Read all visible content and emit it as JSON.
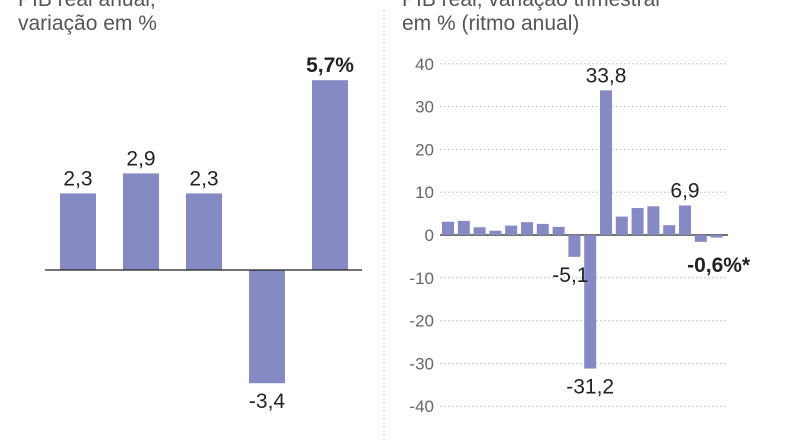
{
  "left_title": [
    "PIB real anual,",
    "variação em %"
  ],
  "right_title": [
    "PIB real, variação trimestral",
    "em % (ritmo anual)"
  ],
  "colors": {
    "bar": "#8589c4",
    "axis": "#222222",
    "grid": "#bbbbbb",
    "divider": "#cccccc"
  },
  "chart_data": [
    {
      "type": "bar",
      "title": "PIB real anual, variação em %",
      "values": [
        2.3,
        2.9,
        2.3,
        -3.4,
        5.7
      ],
      "labels": [
        "2,3",
        "2,9",
        "2,3",
        "-3,4",
        "5,7%"
      ],
      "bold_labels": [
        false,
        false,
        false,
        false,
        true
      ],
      "grid": false
    },
    {
      "type": "bar",
      "title": "PIB real, variação trimestral em % (ritmo anual)",
      "ylim": [
        -40,
        40
      ],
      "yticks": [
        40,
        30,
        20,
        10,
        0,
        -10,
        -20,
        -30,
        -40
      ],
      "grid": true,
      "values": [
        3.1,
        3.3,
        1.8,
        1.0,
        2.2,
        3.0,
        2.6,
        1.9,
        -5.1,
        -31.2,
        33.8,
        4.3,
        6.3,
        6.7,
        2.3,
        6.9,
        -1.6,
        -0.6
      ],
      "annotations": [
        {
          "index": 8,
          "text": "-5,1",
          "bold": false
        },
        {
          "index": 9,
          "text": "-31,2",
          "bold": false
        },
        {
          "index": 10,
          "text": "33,8",
          "bold": false
        },
        {
          "index": 15,
          "text": "6,9",
          "bold": false
        },
        {
          "index": 17,
          "text": "-0,6%*",
          "bold": true
        }
      ]
    }
  ]
}
